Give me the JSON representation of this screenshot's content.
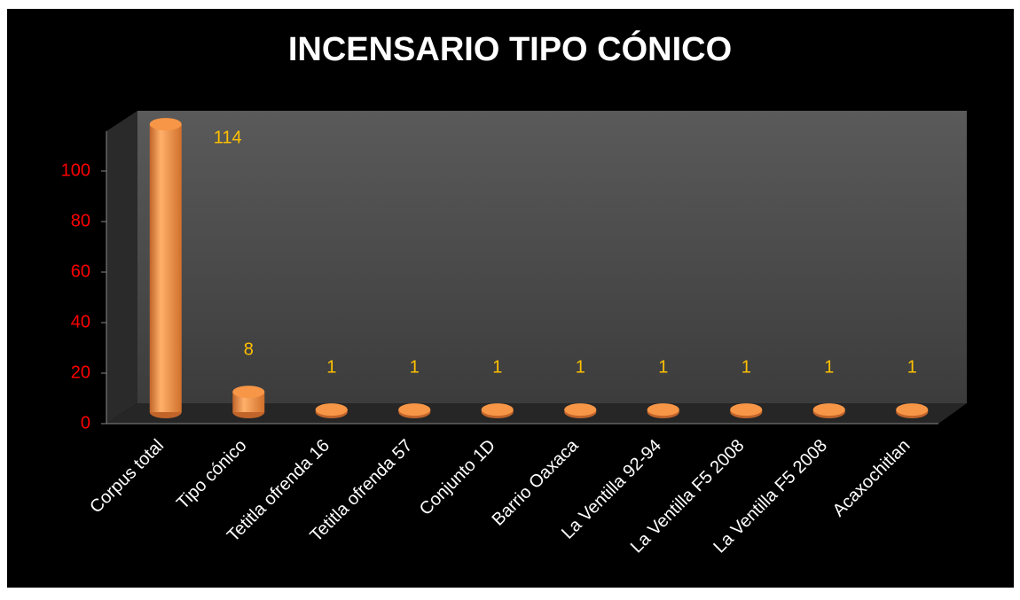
{
  "chart_data": {
    "type": "bar",
    "title": "INCENSARIO TIPO CÓNICO",
    "categories": [
      "Corpus total",
      "Tipo cónico",
      "Tetitla ofrenda 16",
      "Tetitla ofrenda 57",
      "Conjunto 1D",
      "Barrio Oaxaca",
      "La Ventilla 92-94",
      "La Ventilla F5 2008",
      "La Ventilla F5 2008",
      "Acaxochitlan"
    ],
    "values": [
      114,
      8,
      1,
      1,
      1,
      1,
      1,
      1,
      1,
      1
    ],
    "color": "#f79646",
    "ylim": [
      0,
      120
    ],
    "yticks": [
      0,
      20,
      40,
      60,
      80,
      100
    ],
    "grid": false
  }
}
